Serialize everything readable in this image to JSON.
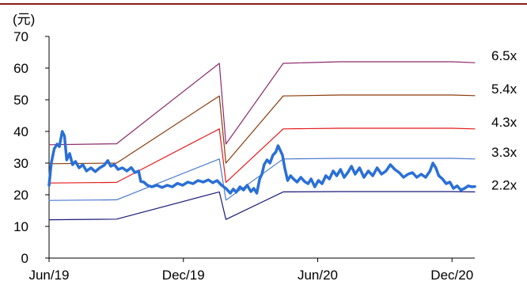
{
  "chart_data": {
    "type": "line",
    "unit_label": "(元)",
    "ylim": [
      0,
      70
    ],
    "y_ticks": [
      0,
      10,
      20,
      30,
      40,
      50,
      60,
      70
    ],
    "x_tick_labels": [
      "Jun/19",
      "Dec/19",
      "Jun/20",
      "Dec/20"
    ],
    "x_tick_dates": [
      "2019-06-01",
      "2019-12-01",
      "2020-06-01",
      "2020-12-01"
    ],
    "x_range": [
      "2019-06-01",
      "2021-01-01"
    ],
    "grid": false,
    "top_rule_color": "#8b1a1a",
    "series": [
      {
        "name": "6.5x",
        "color": "#8b2a6b",
        "points": [
          [
            "2019-06-01",
            35.8
          ],
          [
            "2019-09-01",
            36.1
          ],
          [
            "2020-01-19",
            61.5
          ],
          [
            "2020-01-28",
            36.0
          ],
          [
            "2020-04-15",
            61.5
          ],
          [
            "2020-07-01",
            62.0
          ],
          [
            "2020-12-01",
            62.0
          ],
          [
            "2021-01-01",
            61.7
          ]
        ]
      },
      {
        "name": "5.4x",
        "color": "#8b3a0a",
        "points": [
          [
            "2019-06-01",
            29.8
          ],
          [
            "2019-09-01",
            30.0
          ],
          [
            "2020-01-19",
            51.2
          ],
          [
            "2020-01-28",
            30.0
          ],
          [
            "2020-04-15",
            51.2
          ],
          [
            "2020-07-01",
            51.5
          ],
          [
            "2020-12-01",
            51.5
          ],
          [
            "2021-01-01",
            51.3
          ]
        ]
      },
      {
        "name": "4.3x",
        "color": "#e8191b",
        "points": [
          [
            "2019-06-01",
            23.7
          ],
          [
            "2019-09-01",
            23.9
          ],
          [
            "2020-01-19",
            40.8
          ],
          [
            "2020-01-28",
            23.9
          ],
          [
            "2020-04-15",
            40.8
          ],
          [
            "2020-07-01",
            41.0
          ],
          [
            "2020-12-01",
            41.0
          ],
          [
            "2021-01-01",
            40.8
          ]
        ]
      },
      {
        "name": "3.3x",
        "color": "#4a78d0",
        "points": [
          [
            "2019-06-01",
            18.2
          ],
          [
            "2019-09-01",
            18.4
          ],
          [
            "2020-01-19",
            31.3
          ],
          [
            "2020-01-28",
            18.3
          ],
          [
            "2020-04-15",
            31.3
          ],
          [
            "2020-07-01",
            31.5
          ],
          [
            "2020-12-01",
            31.5
          ],
          [
            "2021-01-01",
            31.3
          ]
        ]
      },
      {
        "name": "2.2x",
        "color": "#1a1a7a",
        "points": [
          [
            "2019-06-01",
            12.1
          ],
          [
            "2019-09-01",
            12.3
          ],
          [
            "2020-01-19",
            20.9
          ],
          [
            "2020-01-28",
            12.2
          ],
          [
            "2020-04-15",
            20.9
          ],
          [
            "2020-07-01",
            21.0
          ],
          [
            "2020-12-01",
            21.0
          ],
          [
            "2021-01-01",
            20.9
          ]
        ]
      },
      {
        "name": "",
        "color": "#2a6fd6",
        "thick": true,
        "points": [
          [
            "2019-06-01",
            23.0
          ],
          [
            "2019-06-04",
            30.0
          ],
          [
            "2019-06-08",
            34.5
          ],
          [
            "2019-06-12",
            36.0
          ],
          [
            "2019-06-15",
            35.2
          ],
          [
            "2019-06-19",
            40.0
          ],
          [
            "2019-06-22",
            38.5
          ],
          [
            "2019-06-25",
            31.0
          ],
          [
            "2019-06-29",
            33.0
          ],
          [
            "2019-07-03",
            29.5
          ],
          [
            "2019-07-07",
            30.5
          ],
          [
            "2019-07-12",
            28.5
          ],
          [
            "2019-07-17",
            29.5
          ],
          [
            "2019-07-22",
            27.5
          ],
          [
            "2019-07-28",
            28.5
          ],
          [
            "2019-08-03",
            27.3
          ],
          [
            "2019-08-09",
            28.5
          ],
          [
            "2019-08-15",
            29.3
          ],
          [
            "2019-08-20",
            30.8
          ],
          [
            "2019-08-24",
            29.0
          ],
          [
            "2019-08-29",
            29.5
          ],
          [
            "2019-09-03",
            28.0
          ],
          [
            "2019-09-09",
            28.5
          ],
          [
            "2019-09-15",
            27.5
          ],
          [
            "2019-09-21",
            28.6
          ],
          [
            "2019-09-26",
            27.0
          ],
          [
            "2019-10-01",
            27.5
          ],
          [
            "2019-10-04",
            24.2
          ],
          [
            "2019-10-08",
            24.0
          ],
          [
            "2019-10-13",
            23.0
          ],
          [
            "2019-10-19",
            22.5
          ],
          [
            "2019-10-26",
            23.0
          ],
          [
            "2019-11-02",
            22.3
          ],
          [
            "2019-11-09",
            23.0
          ],
          [
            "2019-11-16",
            22.5
          ],
          [
            "2019-11-23",
            23.6
          ],
          [
            "2019-11-30",
            23.0
          ],
          [
            "2019-12-07",
            24.0
          ],
          [
            "2019-12-14",
            23.5
          ],
          [
            "2019-12-21",
            24.5
          ],
          [
            "2019-12-28",
            24.0
          ],
          [
            "2020-01-04",
            24.7
          ],
          [
            "2020-01-10",
            23.8
          ],
          [
            "2020-01-16",
            24.5
          ],
          [
            "2020-01-22",
            23.0
          ],
          [
            "2020-01-28",
            22.0
          ],
          [
            "2020-02-03",
            20.5
          ],
          [
            "2020-02-07",
            21.8
          ],
          [
            "2020-02-11",
            20.8
          ],
          [
            "2020-02-16",
            22.5
          ],
          [
            "2020-02-21",
            21.5
          ],
          [
            "2020-02-26",
            23.0
          ],
          [
            "2020-03-02",
            21.0
          ],
          [
            "2020-03-06",
            22.0
          ],
          [
            "2020-03-10",
            20.5
          ],
          [
            "2020-03-14",
            25.0
          ],
          [
            "2020-03-17",
            26.5
          ],
          [
            "2020-03-20",
            29.5
          ],
          [
            "2020-03-24",
            31.0
          ],
          [
            "2020-03-28",
            30.0
          ],
          [
            "2020-04-01",
            32.5
          ],
          [
            "2020-04-05",
            33.5
          ],
          [
            "2020-04-08",
            35.5
          ],
          [
            "2020-04-11",
            34.0
          ],
          [
            "2020-04-14",
            32.5
          ],
          [
            "2020-04-17",
            28.5
          ],
          [
            "2020-04-21",
            24.5
          ],
          [
            "2020-04-25",
            26.0
          ],
          [
            "2020-04-29",
            25.0
          ],
          [
            "2020-05-04",
            24.0
          ],
          [
            "2020-05-09",
            25.5
          ],
          [
            "2020-05-14",
            24.2
          ],
          [
            "2020-05-19",
            23.5
          ],
          [
            "2020-05-23",
            25.0
          ],
          [
            "2020-05-28",
            22.5
          ],
          [
            "2020-06-02",
            24.5
          ],
          [
            "2020-06-07",
            23.5
          ],
          [
            "2020-06-12",
            26.0
          ],
          [
            "2020-06-17",
            25.0
          ],
          [
            "2020-06-22",
            27.5
          ],
          [
            "2020-06-27",
            26.0
          ],
          [
            "2020-07-02",
            28.0
          ],
          [
            "2020-07-07",
            25.5
          ],
          [
            "2020-07-12",
            27.0
          ],
          [
            "2020-07-17",
            29.0
          ],
          [
            "2020-07-22",
            26.5
          ],
          [
            "2020-07-28",
            28.5
          ],
          [
            "2020-08-03",
            25.5
          ],
          [
            "2020-08-09",
            27.5
          ],
          [
            "2020-08-15",
            26.0
          ],
          [
            "2020-08-21",
            28.5
          ],
          [
            "2020-08-27",
            26.5
          ],
          [
            "2020-09-02",
            27.5
          ],
          [
            "2020-09-08",
            29.5
          ],
          [
            "2020-09-14",
            28.0
          ],
          [
            "2020-09-20",
            27.0
          ],
          [
            "2020-09-26",
            25.5
          ],
          [
            "2020-10-02",
            26.5
          ],
          [
            "2020-10-08",
            27.0
          ],
          [
            "2020-10-14",
            25.5
          ],
          [
            "2020-10-20",
            26.5
          ],
          [
            "2020-10-26",
            25.5
          ],
          [
            "2020-11-01",
            27.5
          ],
          [
            "2020-11-05",
            30.0
          ],
          [
            "2020-11-09",
            28.5
          ],
          [
            "2020-11-13",
            26.0
          ],
          [
            "2020-11-18",
            25.0
          ],
          [
            "2020-11-23",
            23.5
          ],
          [
            "2020-11-28",
            24.0
          ],
          [
            "2020-12-03",
            22.0
          ],
          [
            "2020-12-08",
            22.8
          ],
          [
            "2020-12-13",
            21.5
          ],
          [
            "2020-12-18",
            22.0
          ],
          [
            "2020-12-23",
            22.8
          ],
          [
            "2020-12-28",
            22.5
          ],
          [
            "2021-01-01",
            22.6
          ]
        ]
      }
    ]
  }
}
